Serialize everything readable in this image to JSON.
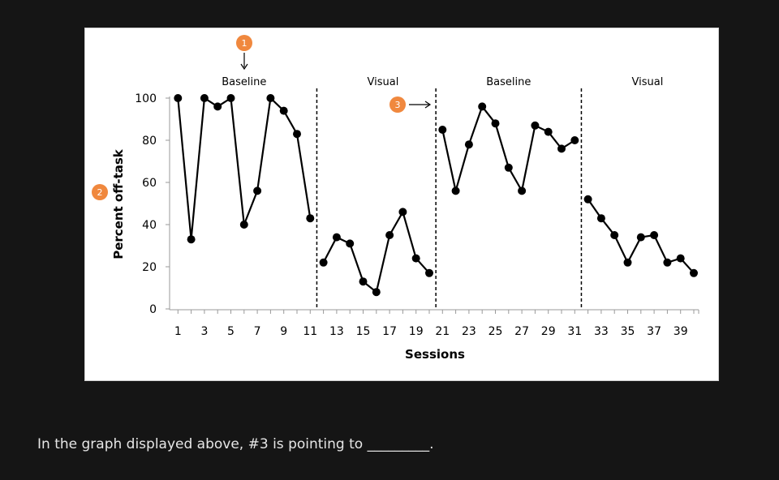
{
  "question": {
    "text": "In the graph displayed above, #3 is pointing to _________."
  },
  "annotations": [
    {
      "label": "1",
      "color": "#f0883e"
    },
    {
      "label": "2",
      "color": "#f0883e"
    },
    {
      "label": "3",
      "color": "#f0883e"
    }
  ],
  "chart_data": {
    "type": "line",
    "title": "",
    "xlabel": "Sessions",
    "ylabel": "Percent off-task",
    "xlim": [
      0,
      41
    ],
    "ylim": [
      0,
      100
    ],
    "yticks": [
      0,
      20,
      40,
      60,
      80,
      100
    ],
    "xtick_labels": [
      1,
      3,
      5,
      7,
      9,
      11,
      13,
      15,
      17,
      19,
      21,
      23,
      25,
      27,
      29,
      31,
      33,
      35,
      37,
      39
    ],
    "grid": false,
    "legend": "none",
    "phase_labels": [
      {
        "text": "Baseline",
        "center": 6
      },
      {
        "text": "Visual",
        "center": 16.5
      },
      {
        "text": "Baseline",
        "center": 26
      },
      {
        "text": "Visual",
        "center": 36.5
      }
    ],
    "phase_change_lines": [
      11.5,
      20.5,
      31.5
    ],
    "series": [
      {
        "sessions": [
          1,
          2,
          3,
          4,
          5,
          6,
          7,
          8,
          9,
          10,
          11
        ],
        "values": [
          100,
          33,
          100,
          96,
          100,
          40,
          56,
          100,
          94,
          83,
          43
        ]
      },
      {
        "sessions": [
          12,
          13,
          14,
          15,
          16,
          17,
          18,
          19,
          20
        ],
        "values": [
          22,
          34,
          31,
          13,
          8,
          35,
          46,
          24,
          17
        ]
      },
      {
        "sessions": [
          21,
          22,
          23,
          24,
          25,
          26,
          27,
          28,
          29,
          30,
          31
        ],
        "values": [
          85,
          56,
          78,
          96,
          88,
          67,
          56,
          87,
          84,
          76,
          80
        ]
      },
      {
        "sessions": [
          32,
          33,
          34,
          35,
          36,
          37,
          38,
          39,
          40
        ],
        "values": [
          52,
          43,
          35,
          22,
          34,
          35,
          22,
          24,
          17
        ]
      }
    ]
  }
}
